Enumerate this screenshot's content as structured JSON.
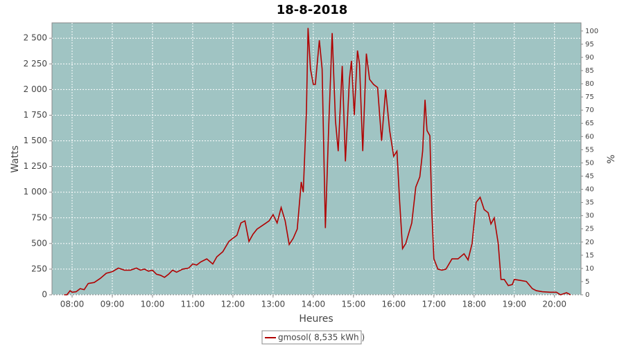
{
  "chart_data": {
    "type": "line",
    "title": "18-8-2018",
    "x_label": "Heures",
    "y_label": "Watts",
    "y2_label": "%",
    "xlim": [
      7.5,
      20.66
    ],
    "ylim": [
      0,
      2650
    ],
    "y2lim": [
      0,
      103.1
    ],
    "xticks": [
      {
        "value": 8,
        "label": "08:00"
      },
      {
        "value": 9,
        "label": "09:00"
      },
      {
        "value": 10,
        "label": "10:00"
      },
      {
        "value": 11,
        "label": "11:00"
      },
      {
        "value": 12,
        "label": "12:00"
      },
      {
        "value": 13,
        "label": "13:00"
      },
      {
        "value": 14,
        "label": "14:00"
      },
      {
        "value": 15,
        "label": "15:00"
      },
      {
        "value": 16,
        "label": "16:00"
      },
      {
        "value": 17,
        "label": "17:00"
      },
      {
        "value": 18,
        "label": "18:00"
      },
      {
        "value": 19,
        "label": "19:00"
      },
      {
        "value": 20,
        "label": "20:00"
      }
    ],
    "yticks": [
      0,
      250,
      500,
      750,
      {
        "value": 1000,
        "label": "1 000"
      },
      {
        "value": 1250,
        "label": "1 250"
      },
      {
        "value": 1500,
        "label": "1 500"
      },
      {
        "value": 1750,
        "label": "1 750"
      },
      {
        "value": 2000,
        "label": "2 000"
      },
      {
        "value": 2250,
        "label": "2 250"
      },
      {
        "value": 2500,
        "label": "2 500"
      }
    ],
    "y2ticks": [
      0,
      5,
      10,
      15,
      20,
      25,
      30,
      35,
      40,
      45,
      50,
      55,
      60,
      65,
      70,
      75,
      80,
      85,
      90,
      95,
      100
    ],
    "grid": true,
    "background": "#a0c4c3",
    "legend": "bottom",
    "x": [
      7.8,
      7.87,
      7.95,
      8.0,
      8.1,
      8.2,
      8.3,
      8.4,
      8.55,
      8.7,
      8.85,
      9.0,
      9.15,
      9.3,
      9.45,
      9.6,
      9.7,
      9.8,
      9.9,
      10.0,
      10.1,
      10.2,
      10.3,
      10.4,
      10.5,
      10.6,
      10.75,
      10.9,
      11.0,
      11.1,
      11.2,
      11.35,
      11.5,
      11.6,
      11.75,
      11.9,
      12.0,
      12.1,
      12.2,
      12.3,
      12.4,
      12.5,
      12.6,
      12.75,
      12.9,
      13.0,
      13.1,
      13.2,
      13.3,
      13.4,
      13.5,
      13.6,
      13.7,
      13.75,
      13.83,
      13.87,
      13.93,
      14.0,
      14.05,
      14.15,
      14.22,
      14.3,
      14.38,
      14.47,
      14.55,
      14.62,
      14.72,
      14.8,
      14.9,
      14.95,
      15.02,
      15.1,
      15.15,
      15.23,
      15.32,
      15.4,
      15.5,
      15.6,
      15.7,
      15.8,
      15.9,
      16.0,
      16.08,
      16.15,
      16.22,
      16.3,
      16.45,
      16.55,
      16.65,
      16.72,
      16.78,
      16.83,
      16.9,
      16.95,
      17.0,
      17.1,
      17.2,
      17.3,
      17.45,
      17.6,
      17.75,
      17.85,
      17.95,
      18.05,
      18.15,
      18.25,
      18.35,
      18.42,
      18.5,
      18.6,
      18.67,
      18.75,
      18.85,
      18.95,
      19.0,
      19.15,
      19.3,
      19.45,
      19.55,
      19.7,
      19.9,
      20.05,
      20.15,
      20.3,
      20.4
    ],
    "series": [
      {
        "name": "gmosol( 8,535 kWh )",
        "color": "#b00000",
        "values": [
          0,
          0,
          40,
          25,
          30,
          60,
          50,
          110,
          120,
          160,
          210,
          225,
          260,
          240,
          240,
          260,
          240,
          250,
          230,
          240,
          200,
          190,
          170,
          200,
          240,
          220,
          250,
          260,
          300,
          290,
          320,
          350,
          300,
          370,
          420,
          520,
          550,
          580,
          700,
          720,
          520,
          590,
          640,
          680,
          720,
          780,
          700,
          850,
          720,
          490,
          550,
          640,
          1100,
          1000,
          1800,
          2600,
          2200,
          2050,
          2050,
          2480,
          2200,
          650,
          1600,
          2550,
          1700,
          1400,
          2230,
          1300,
          2100,
          2280,
          1750,
          2380,
          2250,
          1400,
          2350,
          2100,
          2050,
          2020,
          1500,
          2000,
          1600,
          1350,
          1400,
          900,
          450,
          500,
          700,
          1050,
          1150,
          1400,
          1900,
          1600,
          1550,
          800,
          350,
          250,
          240,
          250,
          350,
          350,
          400,
          340,
          500,
          900,
          950,
          830,
          800,
          690,
          750,
          500,
          150,
          150,
          90,
          100,
          150,
          140,
          130,
          60,
          40,
          30,
          25,
          25,
          0,
          20,
          0
        ]
      }
    ]
  }
}
